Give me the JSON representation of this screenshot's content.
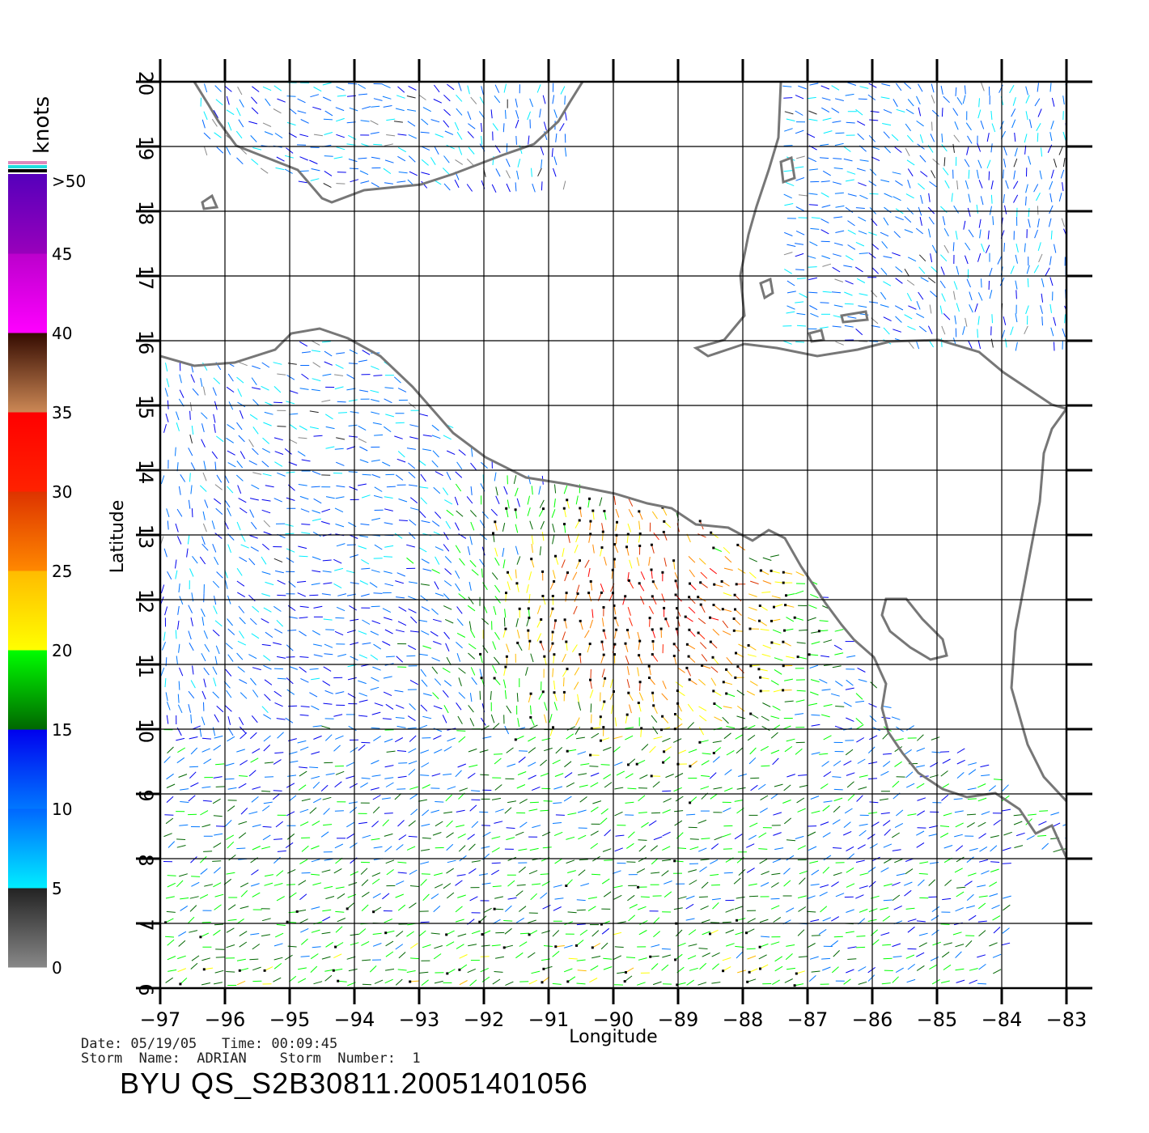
{
  "map": {
    "lon_range": [
      -97,
      -83
    ],
    "lat_range": [
      6,
      20
    ],
    "lon_ticks": [
      -97,
      -96,
      -95,
      -94,
      -93,
      -92,
      -91,
      -90,
      -89,
      -88,
      -87,
      -86,
      -85,
      -84,
      -83
    ],
    "lat_ticks": [
      6,
      7,
      8,
      9,
      10,
      11,
      12,
      13,
      14,
      15,
      16,
      17,
      18,
      19,
      20
    ],
    "xlabel": "Longitude",
    "ylabel": "Latitude",
    "grid": true,
    "land_outline_color": "#777777"
  },
  "colorbar": {
    "unit_label": "knots",
    "labels": [
      "0",
      "5",
      "10",
      "15",
      "20",
      "25",
      "30",
      "35",
      "40",
      "45",
      ">50"
    ],
    "bands": [
      {
        "from": 0,
        "to": 5,
        "colors": [
          "#888888",
          "#222222"
        ]
      },
      {
        "from": 5,
        "to": 10,
        "colors": [
          "#00eeff",
          "#0066ff"
        ]
      },
      {
        "from": 10,
        "to": 15,
        "colors": [
          "#0077ff",
          "#0000ee"
        ]
      },
      {
        "from": 15,
        "to": 20,
        "colors": [
          "#006600",
          "#00ff00"
        ]
      },
      {
        "from": 20,
        "to": 25,
        "colors": [
          "#ffff00",
          "#ffbb00"
        ]
      },
      {
        "from": 25,
        "to": 30,
        "colors": [
          "#ff8800",
          "#dd3300"
        ]
      },
      {
        "from": 30,
        "to": 35,
        "colors": [
          "#ff2200",
          "#ff0000"
        ]
      },
      {
        "from": 35,
        "to": 40,
        "colors": [
          "#cc8855",
          "#330a00"
        ]
      },
      {
        "from": 40,
        "to": 45,
        "colors": [
          "#ff00ff",
          "#bb00cc"
        ]
      },
      {
        "from": 45,
        "to": 50,
        "colors": [
          "#9900bb",
          "#5500bb"
        ]
      }
    ],
    "top_stripes": [
      "#dd88bb",
      "#22dddd",
      "#000000"
    ]
  },
  "meta": {
    "date_line": "Date: 05/19/05   Time: 00:09:45",
    "storm_line": "Storm  Name:  ADRIAN    Storm  Number:  1",
    "product_id": "BYU  QS_S2B30811.20051401056"
  }
}
